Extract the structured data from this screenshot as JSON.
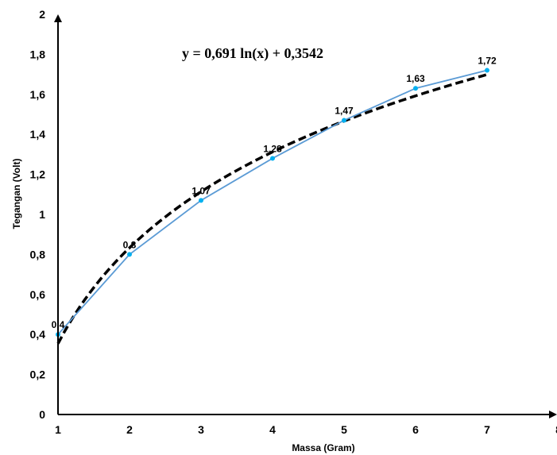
{
  "chart_data": {
    "type": "line",
    "title": "",
    "xlabel": "Massa (Gram)",
    "ylabel": "Tegangan (Volt)",
    "xlim": [
      1,
      8
    ],
    "ylim": [
      0,
      2
    ],
    "x_ticks": [
      1,
      2,
      3,
      4,
      5,
      6,
      7,
      8
    ],
    "x_tick_labels": [
      "1",
      "2",
      "3",
      "4",
      "5",
      "6",
      "7",
      "8"
    ],
    "y_ticks": [
      0,
      0.2,
      0.4,
      0.6,
      0.8,
      1,
      1.2,
      1.4,
      1.6,
      1.8,
      2
    ],
    "y_tick_labels": [
      "0",
      "0,2",
      "0,4",
      "0,6",
      "0,8",
      "1",
      "1,2",
      "1,4",
      "1,6",
      "1,8",
      "2"
    ],
    "grid": false,
    "legend": "none",
    "series": [
      {
        "x": [
          1,
          2,
          3,
          4,
          5,
          6,
          7
        ],
        "values": [
          0.4,
          0.8,
          1.07,
          1.28,
          1.47,
          1.63,
          1.72
        ],
        "labels": [
          "0,4",
          "0,8",
          "1,07",
          "1,28",
          "1,47",
          "1,63",
          "1,72"
        ],
        "color": "#5b9bd5",
        "marker_color": "#00b0f0"
      }
    ],
    "trendline": {
      "type": "logarithmic",
      "a": 0.691,
      "b": 0.3542,
      "x_range": [
        1,
        7
      ],
      "color": "#000000",
      "style": "dashed"
    },
    "annotation": "y = 0,691 ln(x) + 0,3542"
  }
}
